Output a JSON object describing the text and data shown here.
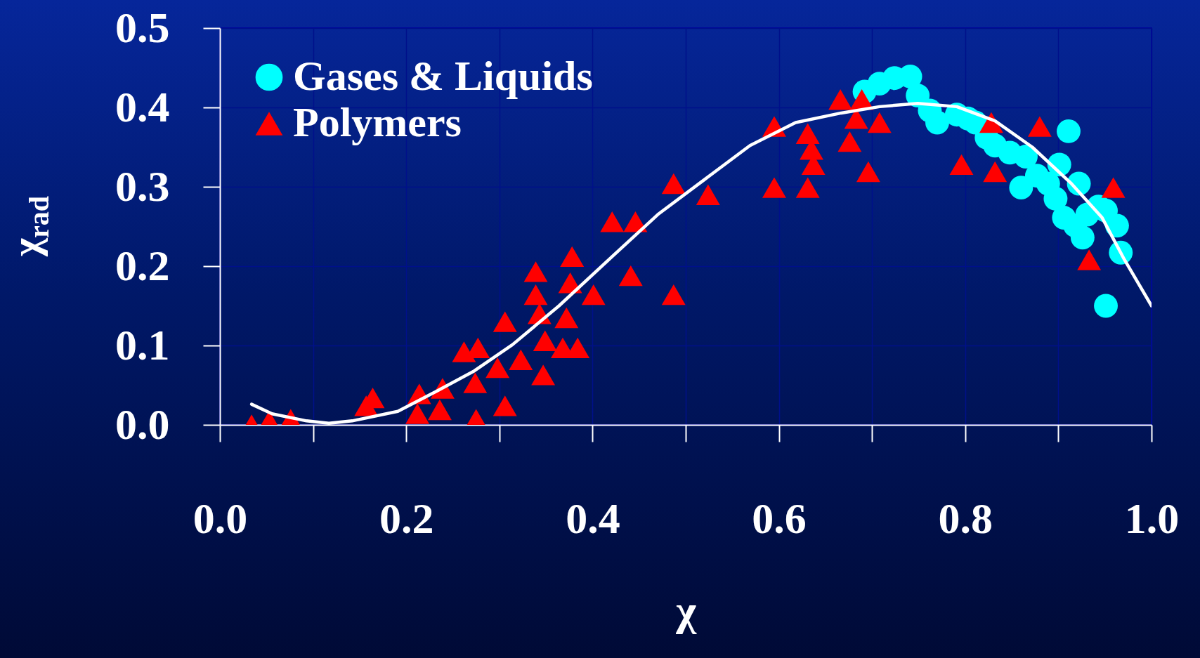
{
  "chart_data": {
    "type": "scatter",
    "xlabel": "χ",
    "ylabel": "χ$_{rad}$",
    "xlim": [
      0,
      1
    ],
    "ylim": [
      0,
      0.5
    ],
    "xticks": [
      {
        "value": 0,
        "label": "0.0"
      },
      {
        "value": 0.1,
        "label": null
      },
      0.2,
      {
        "value": 0.3,
        "label": null
      },
      0.4,
      {
        "value": 0.5,
        "label": null
      },
      0.6,
      {
        "value": 0.7,
        "label": null
      },
      0.8,
      {
        "value": 0.9,
        "label": null
      },
      {
        "value": 1,
        "label": "1.0"
      }
    ],
    "yticks": [
      {
        "value": 0,
        "label": "0.0"
      },
      0.1,
      0.2,
      0.3,
      0.4,
      0.5
    ],
    "grid": true,
    "legend": "top left",
    "series": [
      {
        "name": "Gases & Liquids",
        "color": "#00ffff",
        "marker": "circle",
        "x": [
          0.692,
          0.708,
          0.724,
          0.741,
          0.749,
          0.762,
          0.77,
          0.791,
          0.803,
          0.811,
          0.823,
          0.832,
          0.848,
          0.865,
          0.86,
          0.911,
          0.877,
          0.889,
          0.897,
          0.906,
          0.918,
          0.926,
          0.931,
          0.943,
          0.951,
          0.963,
          0.967,
          0.951,
          0.922,
          0.901
        ],
        "values": [
          0.42,
          0.43,
          0.437,
          0.439,
          0.415,
          0.396,
          0.381,
          0.391,
          0.386,
          0.381,
          0.362,
          0.352,
          0.343,
          0.338,
          0.299,
          0.37,
          0.314,
          0.304,
          0.285,
          0.261,
          0.251,
          0.236,
          0.265,
          0.275,
          0.27,
          0.251,
          0.217,
          0.15,
          0.304,
          0.328
        ]
      },
      {
        "name": "Polymers",
        "color": "#ff0000",
        "marker": "triangle",
        "x": [
          0.034,
          0.053,
          0.076,
          0.157,
          0.164,
          0.212,
          0.214,
          0.239,
          0.236,
          0.262,
          0.277,
          0.275,
          0.274,
          0.306,
          0.306,
          0.298,
          0.323,
          0.339,
          0.339,
          0.343,
          0.347,
          0.349,
          0.378,
          0.376,
          0.372,
          0.368,
          0.384,
          0.401,
          0.421,
          0.446,
          0.441,
          0.487,
          0.487,
          0.524,
          0.595,
          0.595,
          0.631,
          0.631,
          0.637,
          0.635,
          0.666,
          0.676,
          0.689,
          0.696,
          0.683,
          0.708,
          0.796,
          0.832,
          0.828,
          0.88,
          0.933,
          0.959
        ],
        "values": [
          0.0,
          0.005,
          0.007,
          0.024,
          0.034,
          0.014,
          0.039,
          0.046,
          0.019,
          0.092,
          0.097,
          0.007,
          0.053,
          0.13,
          0.024,
          0.072,
          0.082,
          0.193,
          0.164,
          0.14,
          0.063,
          0.106,
          0.212,
          0.179,
          0.135,
          0.097,
          0.097,
          0.164,
          0.256,
          0.256,
          0.188,
          0.164,
          0.304,
          0.29,
          0.299,
          0.376,
          0.367,
          0.299,
          0.328,
          0.347,
          0.41,
          0.357,
          0.41,
          0.319,
          0.386,
          0.381,
          0.328,
          0.319,
          0.381,
          0.376,
          0.208,
          0.299
        ]
      },
      {
        "type": "line",
        "color": "#ffffff",
        "marker": "none",
        "line_style": "solid",
        "x": [
          0.034,
          0.056,
          0.093,
          0.117,
          0.142,
          0.191,
          0.232,
          0.273,
          0.314,
          0.364,
          0.421,
          0.47,
          0.52,
          0.569,
          0.618,
          0.667,
          0.708,
          0.749,
          0.791,
          0.832,
          0.872,
          0.914,
          0.947,
          0.971,
          1.0
        ],
        "values": [
          0.026,
          0.014,
          0.005,
          0.002,
          0.005,
          0.017,
          0.042,
          0.068,
          0.101,
          0.15,
          0.212,
          0.265,
          0.309,
          0.352,
          0.381,
          0.393,
          0.401,
          0.405,
          0.401,
          0.383,
          0.35,
          0.304,
          0.261,
          0.208,
          0.15
        ]
      }
    ]
  }
}
